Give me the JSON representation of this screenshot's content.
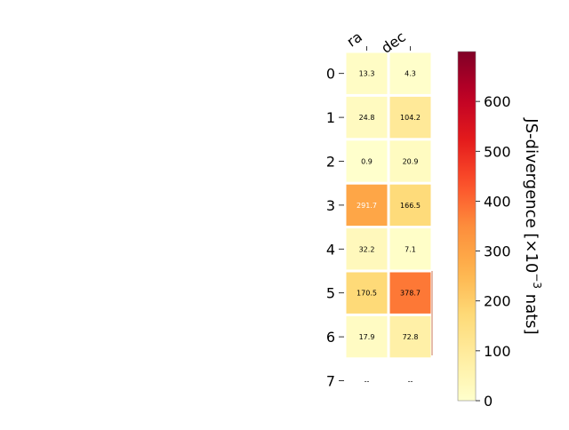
{
  "chart_data": {
    "type": "heatmap",
    "columns": [
      "ra",
      "dec"
    ],
    "rows": [
      "0",
      "1",
      "2",
      "3",
      "4",
      "5",
      "6",
      "7"
    ],
    "values": [
      [
        13.3,
        4.3
      ],
      [
        24.8,
        104.2
      ],
      [
        0.9,
        20.9
      ],
      [
        291.7,
        166.5
      ],
      [
        32.2,
        7.1
      ],
      [
        170.5,
        378.7
      ],
      [
        17.9,
        72.8
      ],
      [
        null,
        null
      ]
    ],
    "cell_labels": [
      [
        "13.3",
        "4.3"
      ],
      [
        "24.8",
        "104.2"
      ],
      [
        "0.9",
        "20.9"
      ],
      [
        "291.7",
        "166.5"
      ],
      [
        "32.2",
        "7.1"
      ],
      [
        "170.5",
        "378.7"
      ],
      [
        "17.9",
        "72.8"
      ],
      [
        "--",
        "--"
      ]
    ],
    "colorbar": {
      "label_main": "JS-divergence [×10",
      "label_exp": "−3",
      "label_unit": " nats]",
      "min": 0,
      "max": 700,
      "ticks": [
        0,
        100,
        200,
        300,
        400,
        500,
        600
      ],
      "colormap": "YlOrRd"
    },
    "light_text_values": [
      291.7
    ]
  }
}
